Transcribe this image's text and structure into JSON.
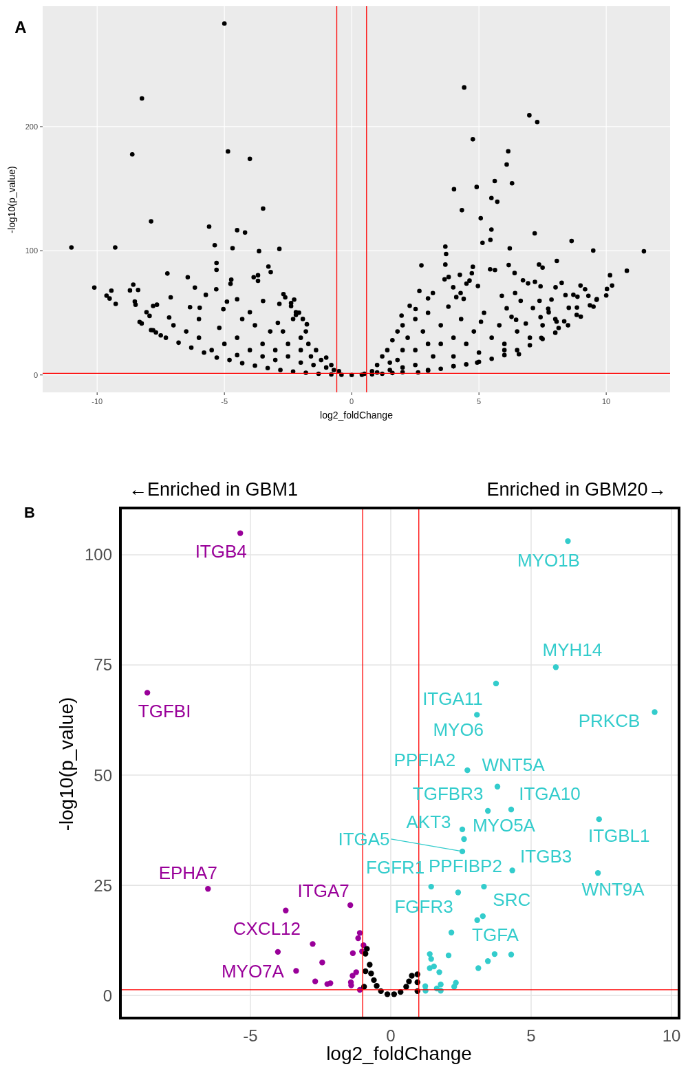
{
  "chart_data": [
    {
      "type": "scatter",
      "title": "A",
      "xlabel": "log2_foldChange",
      "ylabel": "-log10(p_value)",
      "xlim": [
        -12.14,
        12.51
      ],
      "ylim": [
        -14,
        297
      ],
      "xticks": [
        -10,
        -5,
        0,
        5,
        10
      ],
      "yticks": [
        0,
        100,
        200
      ],
      "grid": true,
      "marker": "circle",
      "ref_lines": [
        {
          "axis": "x",
          "value": -0.585,
          "color": "#ff0000"
        },
        {
          "axis": "x",
          "value": 0.585,
          "color": "#ff0000"
        },
        {
          "axis": "y",
          "value": 1.3,
          "color": "#ff0000"
        }
      ],
      "series": [
        {
          "color": "#000000",
          "x": [
            -5.0,
            -8.24,
            -8.62,
            -4.86,
            -4.0,
            -3.48,
            -7.88,
            -5.6,
            -4.5,
            -4.19,
            -11.01,
            -9.29,
            -5.38,
            -4.68,
            -3.64,
            -2.84,
            -5.31,
            -5.31,
            -3.27,
            -3.18,
            -7.24,
            -6.44,
            -3.85,
            -3.68,
            -3.68,
            -4.73,
            -4.76,
            -10.11,
            -9.44,
            -9.63,
            -9.51,
            -9.27,
            -8.58,
            -8.71,
            -8.39,
            -8.52,
            -8.49,
            -6.16,
            -5.32,
            -5.73,
            -7.11,
            -8.33,
            -8.25,
            -8.06,
            -7.94,
            -7.8,
            -7.65,
            -7.88,
            -7.69,
            -7.5,
            -2.68,
            -2.61,
            -2.26,
            -2.38,
            -2.38,
            -2.84,
            -2.19,
            -2.07,
            -2.19,
            -1.92,
            -1.76,
            -3.48,
            -4.0,
            -4.9,
            -5.04,
            -4.5,
            -7.17,
            -6.35,
            -5.97,
            -7.8,
            -7.3,
            -6.8,
            -6.3,
            -5.8,
            -5.3,
            -4.8,
            -4.3,
            -3.8,
            -3.3,
            -2.8,
            -2.3,
            -1.8,
            -1.3,
            -0.8,
            -0.4,
            0,
            -2.0,
            -2.0,
            -2.0,
            -1.8,
            -1.7,
            -1.6,
            -1.5,
            -1.4,
            -1.2,
            -1.0,
            -1.0,
            -0.8,
            -0.7,
            -0.5,
            -2.5,
            -2.5,
            -2.7,
            -3.0,
            -3.0,
            -3.5,
            -3.5,
            -4.0,
            -4.5,
            -4.5,
            -5.0,
            -5.5,
            -6.0,
            -6.5,
            -7.0,
            -2.3,
            -2.9,
            -3.2,
            -3.8,
            -4.3,
            -5.2,
            -6.0,
            4.42,
            6.98,
            7.29,
            4.76,
            6.15,
            6.09,
            5.62,
            6.3,
            4.02,
            4.91,
            5.49,
            5.72,
            4.33,
            5.07,
            5.49,
            7.19,
            8.64,
            5.14,
            5.45,
            6.21,
            9.49,
            11.48,
            3.68,
            3.71,
            3.68,
            2.74,
            4.76,
            4.72,
            6.17,
            7.36,
            7.5,
            8.06,
            10.81,
            10.15,
            10.03,
            10.23,
            5.44,
            5.63,
            6.4,
            4.25,
            3.81,
            3.65,
            6.73,
            6.93,
            7.2,
            7.42,
            8.01,
            8.25,
            8.99,
            9.17,
            9.3,
            9.63,
            4.96,
            4.51,
            4.63,
            3.99,
            3.19,
            2.66,
            4.11,
            4.28,
            4.4,
            5.9,
            6.42,
            8.4,
            8.71,
            8.87,
            6.64,
            7.38,
            7.85,
            3.0,
            2.28,
            1.96,
            2.51,
            9.36,
            9.62,
            8.53,
            8.85,
            6.09,
            7.12,
            7.72,
            7.74,
            8.84,
            8.35,
            8.05,
            5.08,
            6.28,
            6.46,
            6.84,
            7.42,
            6.57,
            4.93,
            7.45,
            8.13,
            6.0,
            2.61,
            0.8,
            1.0,
            1.2,
            1.4,
            1.6,
            1.8,
            2.0,
            1.5,
            2.0,
            2.2,
            2.5,
            2.5,
            2.8,
            3.0,
            3.0,
            3.2,
            3.5,
            3.5,
            3.8,
            4.0,
            4.0,
            4.3,
            4.5,
            4.8,
            5.0,
            5.2,
            5.5,
            5.8,
            6.0,
            6.5,
            7.0,
            7.5,
            8.0,
            1.0,
            1.5,
            2.0,
            2.5,
            3.0,
            4.0,
            0.5,
            1.8,
            0.4,
            0.8,
            1.2,
            1.6,
            2.0,
            3.0,
            3.5,
            4.0,
            4.5,
            5.0,
            5.5,
            6.0,
            6.5,
            7.0,
            7.5,
            8.0,
            8.5,
            9.0,
            9.5,
            10.0
          ],
          "values": [
            283,
            222.7,
            177.7,
            180,
            174,
            134,
            123.7,
            119.5,
            116.6,
            114.7,
            102.7,
            102.7,
            104.5,
            102.1,
            99.7,
            101.5,
            90.2,
            84.7,
            87.3,
            82.9,
            81.7,
            78.7,
            78.7,
            80.3,
            75.8,
            76.8,
            73.4,
            70.4,
            67.9,
            63.9,
            61.6,
            57.2,
            72.8,
            68.1,
            68.5,
            59.2,
            56.6,
            70.4,
            69.0,
            64.5,
            62.5,
            42.7,
            41.5,
            50.6,
            47.6,
            55.6,
            56.6,
            36.2,
            34.2,
            31.9,
            65.1,
            62.5,
            60.7,
            57.9,
            55.4,
            57.2,
            50.6,
            50.1,
            48.3,
            45.1,
            40.8,
            59.6,
            50.6,
            59,
            53.0,
            61,
            46.3,
            54.6,
            54.2,
            36,
            30,
            26,
            22,
            18,
            14,
            12,
            9.5,
            7.5,
            5.5,
            4,
            2.8,
            1.8,
            1,
            0.4,
            0.1,
            0,
            30,
            20,
            10,
            35,
            25,
            15,
            8,
            20,
            12,
            14,
            6,
            8,
            4,
            3,
            25,
            15,
            35,
            20,
            12,
            25,
            15,
            20,
            30,
            16,
            25,
            20,
            30,
            35,
            40,
            45,
            42,
            35,
            40,
            45,
            38,
            45,
            231.5,
            209.2,
            203.7,
            189.8,
            180.2,
            169.5,
            156.2,
            154.4,
            149.6,
            151.4,
            142.5,
            139.5,
            132.7,
            126.2,
            117.1,
            114.1,
            107.9,
            106.4,
            108.8,
            102,
            100.2,
            99.6,
            103.4,
            97.4,
            88.9,
            88.3,
            87.1,
            81.9,
            88.5,
            88.9,
            86.5,
            91.9,
            83.9,
            80.3,
            69.2,
            72.0,
            85.1,
            84.5,
            82.1,
            80.6,
            78.9,
            77,
            76.2,
            73.8,
            75.0,
            71.4,
            70.6,
            74.2,
            72.0,
            69.0,
            63.7,
            61.1,
            71.6,
            73.6,
            76.0,
            70.6,
            66.0,
            67.6,
            62.7,
            66.0,
            61.3,
            63.7,
            66.0,
            64.3,
            64.6,
            63.0,
            59.7,
            59.7,
            60.7,
            61.7,
            55.7,
            47.8,
            53.1,
            56.1,
            60.5,
            54.1,
            54.3,
            53.7,
            53.9,
            53.3,
            50.5,
            48.4,
            43.2,
            43,
            42.8,
            46.8,
            44.4,
            41.4,
            46.5,
            16.8,
            10.0,
            29.9,
            37.8,
            20,
            2.1,
            3,
            8,
            15,
            20,
            28,
            35,
            40,
            10,
            20,
            30,
            45,
            20,
            35,
            25,
            50,
            15,
            40,
            25,
            55,
            30,
            15,
            45,
            25,
            35,
            18,
            50,
            30,
            40,
            25,
            35,
            30,
            40,
            45,
            2,
            4,
            6,
            8,
            4,
            7,
            1,
            12,
            0.1,
            0.5,
            1.0,
            1.6,
            2.2,
            3.5,
            5,
            7,
            8.5,
            10.5,
            13,
            16,
            20,
            24,
            29,
            34,
            40,
            47,
            55,
            64
          ]
        }
      ]
    },
    {
      "type": "scatter",
      "title": "B",
      "xlabel": "log2_foldChange",
      "ylabel": "-log10(p_value)",
      "xlim": [
        -9.58,
        10.22
      ],
      "ylim": [
        -4.8,
        110.3
      ],
      "xticks": [
        -5,
        0,
        5,
        10
      ],
      "yticks": [
        0,
        25,
        50,
        75,
        100
      ],
      "grid": true,
      "marker": "circle",
      "ref_lines": [
        {
          "axis": "x",
          "value": -1,
          "color": "#ff0000"
        },
        {
          "axis": "x",
          "value": 1,
          "color": "#ff0000"
        },
        {
          "axis": "y",
          "value": 1.3,
          "color": "#ff0000"
        }
      ],
      "series": [
        {
          "color": "#990099",
          "x": [
            -5.36,
            -8.67,
            -6.51,
            -1.44,
            -3.74,
            -2.78,
            -4.02,
            -3.37,
            -2.44,
            -2.69,
            -2.26,
            -2.15,
            -1.1,
            -1.16,
            -1.35,
            -0.97,
            -1.02,
            -1.36,
            -1.23,
            -1.42,
            -1.41,
            -1.1
          ],
          "values": [
            104.9,
            68.7,
            24.2,
            20.5,
            19.3,
            11.7,
            9.9,
            5.6,
            7.5,
            3.2,
            2.6,
            2.8,
            14.2,
            13.0,
            9.6,
            11.4,
            10.0,
            4.5,
            5.3,
            3.0,
            2.3,
            1.3
          ]
        },
        {
          "color": "#33cccc",
          "x": [
            6.31,
            5.88,
            3.75,
            3.07,
            9.4,
            2.73,
            3.8,
            3.46,
            4.29,
            7.42,
            2.55,
            2.61,
            2.55,
            4.33,
            7.38,
            1.44,
            2.4,
            3.32,
            3.28,
            3.08,
            2.16,
            4.29,
            3.7,
            3.46,
            3.12,
            2.06,
            1.39,
            1.44,
            1.39,
            1.54,
            1.73,
            2.32,
            2.26,
            1.78,
            1.64,
            1.78,
            1.24,
            1.23
          ],
          "values": [
            103.1,
            74.5,
            70.8,
            63.7,
            64.3,
            51.1,
            47.4,
            41.9,
            42.2,
            40.0,
            37.7,
            35.5,
            32.7,
            28.4,
            27.8,
            24.7,
            23.4,
            24.7,
            18.0,
            17.1,
            14.3,
            9.3,
            9.4,
            7.8,
            6.2,
            9.1,
            9.4,
            8.3,
            6.2,
            6.6,
            5.3,
            2.9,
            2.0,
            2.5,
            1.6,
            1.1,
            1.1,
            2.1
          ]
        },
        {
          "color": "#000000",
          "x": [
            -0.85,
            -0.9,
            -0.9,
            -0.7,
            -0.6,
            -0.5,
            -0.35,
            -0.12,
            0.12,
            0.35,
            0.55,
            0.65,
            0.75,
            0.95,
            0.95,
            0.95,
            -0.95,
            -0.75
          ],
          "values": [
            10.6,
            9.5,
            5.5,
            5.0,
            3.5,
            2.2,
            1.0,
            0.3,
            0.3,
            0.8,
            2.0,
            3.2,
            4.5,
            4.8,
            3.0,
            1.0,
            2.0,
            7.0
          ]
        }
      ],
      "annotations": [
        "←Enriched in GBM1",
        "Enriched in GBM20→",
        {
          "text": "ITGB4",
          "x": -5.36,
          "y": 104.9
        },
        {
          "text": "TGFBI",
          "x": -8.67,
          "y": 68.7
        },
        {
          "text": "EPHA7",
          "x": -6.51,
          "y": 24.2
        },
        {
          "text": "ITGA7",
          "x": -1.44,
          "y": 20.5
        },
        {
          "text": "CXCL12",
          "x": -4.02,
          "y": 9.9
        },
        {
          "text": "MYO7A",
          "x": -3.37,
          "y": 5.6
        },
        {
          "text": "MYO1B",
          "x": 6.31,
          "y": 103.1
        },
        {
          "text": "MYH14",
          "x": 5.88,
          "y": 74.5
        },
        {
          "text": "ITGA11",
          "x": 3.75,
          "y": 70.8
        },
        {
          "text": "MYO6",
          "x": 3.07,
          "y": 63.7
        },
        {
          "text": "PRKCB",
          "x": 9.4,
          "y": 64.3
        },
        {
          "text": "PPFIA2",
          "x": 2.73,
          "y": 51.1
        },
        {
          "text": "WNT5A",
          "x": 3.8,
          "y": 47.4
        },
        {
          "text": "TGFBR3",
          "x": 3.46,
          "y": 41.9
        },
        {
          "text": "ITGA10",
          "x": 4.29,
          "y": 42.2
        },
        {
          "text": "ITGBL1",
          "x": 7.42,
          "y": 40.0
        },
        {
          "text": "AKT3",
          "x": 2.55,
          "y": 37.7
        },
        {
          "text": "MYO5A",
          "x": 2.61,
          "y": 35.5
        },
        {
          "text": "ITGA5",
          "x": 2.55,
          "y": 32.7
        },
        {
          "text": "FGFR1",
          "x": 1.44,
          "y": 24.7
        },
        {
          "text": "PPFIBP2",
          "x": 3.32,
          "y": 24.7
        },
        {
          "text": "ITGB3",
          "x": 4.33,
          "y": 28.4
        },
        {
          "text": "WNT9A",
          "x": 7.38,
          "y": 27.8
        },
        {
          "text": "SRC",
          "x": 3.28,
          "y": 18.0
        },
        {
          "text": "FGFR3",
          "x": 2.16,
          "y": 14.3
        },
        {
          "text": "TGFA",
          "x": 4.29,
          "y": 9.3
        }
      ]
    }
  ]
}
